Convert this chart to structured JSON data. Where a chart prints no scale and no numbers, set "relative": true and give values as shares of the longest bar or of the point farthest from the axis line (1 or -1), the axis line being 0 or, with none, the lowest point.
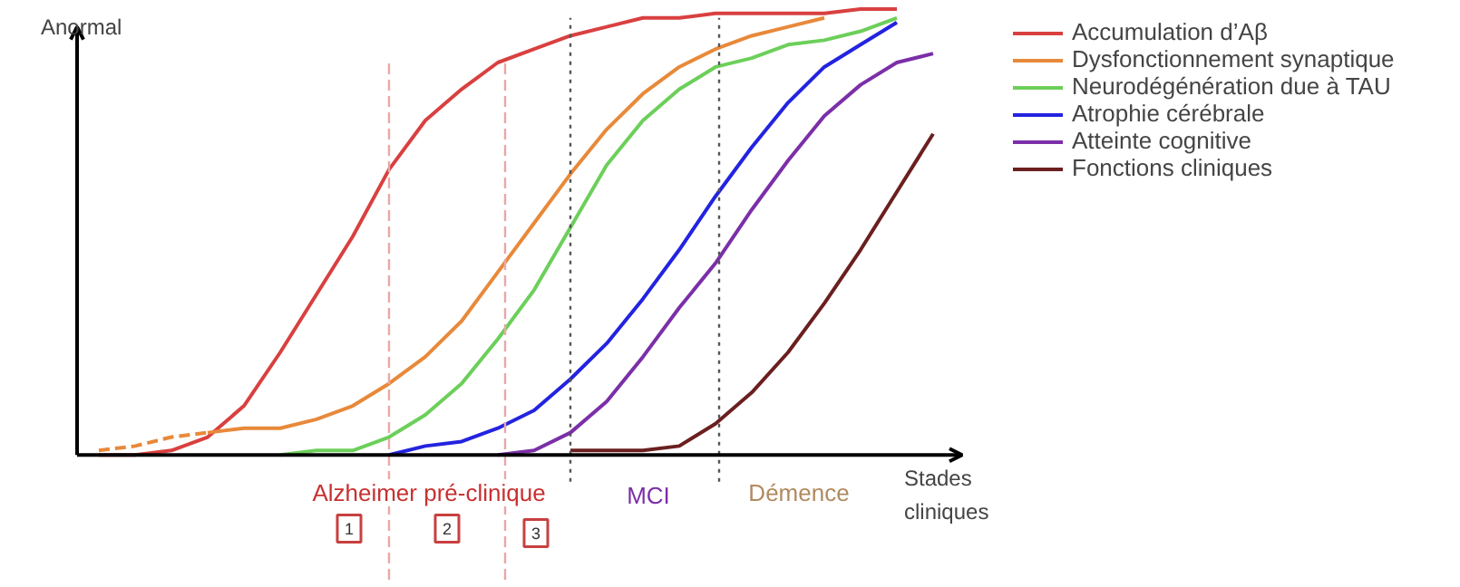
{
  "chart_data": {
    "type": "line",
    "relative": true,
    "ylabel": "Anormal",
    "xlabel": "Stades cliniques",
    "legend": "right",
    "grid": false,
    "line_style": "solid",
    "categories": [
      null,
      null,
      null,
      null,
      null,
      null,
      null,
      null,
      null,
      null,
      null,
      null,
      null,
      null,
      null,
      null,
      null,
      null,
      null,
      null,
      null,
      null,
      null,
      null
    ],
    "series": [
      {
        "name": "Accumulation d’Aβ",
        "color": "#d94040",
        "values": [
          0.0,
          0.0,
          0.01,
          0.04,
          0.11,
          0.23,
          0.36,
          0.49,
          0.64,
          0.75,
          0.82,
          0.88,
          0.91,
          0.94,
          0.96,
          0.98,
          0.98,
          0.99,
          0.99,
          0.99,
          0.99,
          1.0,
          1.0,
          null
        ]
      },
      {
        "name": "Dysfonctionnement synaptique",
        "color": "#e8893a",
        "values": [
          null,
          null,
          null,
          0.05,
          0.06,
          0.06,
          0.08,
          0.11,
          0.16,
          0.22,
          0.3,
          0.41,
          0.52,
          0.63,
          0.73,
          0.81,
          0.87,
          0.91,
          0.94,
          0.96,
          0.98,
          null,
          null,
          null
        ]
      },
      {
        "color": "#e8893a",
        "line_style": "dashed",
        "values": [
          0.01,
          0.02,
          0.04,
          0.05,
          null,
          null,
          null,
          null,
          null,
          null,
          null,
          null,
          null,
          null,
          null,
          null,
          null,
          null,
          null,
          null,
          null,
          null,
          null,
          null
        ]
      },
      {
        "name": "Neurodégénération due à TAU",
        "color": "#6ccf5a",
        "values": [
          null,
          null,
          null,
          null,
          null,
          0.0,
          0.01,
          0.01,
          0.04,
          0.09,
          0.16,
          0.26,
          0.37,
          0.51,
          0.65,
          0.75,
          0.82,
          0.87,
          0.89,
          0.92,
          0.93,
          0.95,
          0.98,
          null
        ]
      },
      {
        "name": "Atrophie cérébrale",
        "color": "#2323e0",
        "values": [
          null,
          null,
          null,
          null,
          null,
          null,
          null,
          null,
          0.0,
          0.02,
          0.03,
          0.06,
          0.1,
          0.17,
          0.25,
          0.35,
          0.46,
          0.58,
          0.69,
          0.79,
          0.87,
          0.92,
          0.97,
          null
        ]
      },
      {
        "name": "Atteinte cognitive",
        "color": "#7b2fa8",
        "values": [
          null,
          null,
          null,
          null,
          null,
          null,
          null,
          null,
          null,
          null,
          null,
          0.0,
          0.01,
          0.05,
          0.12,
          0.22,
          0.33,
          0.43,
          0.55,
          0.66,
          0.76,
          0.83,
          0.88,
          0.9
        ]
      },
      {
        "name": "Fonctions cliniques",
        "color": "#6b1f1f",
        "values": [
          null,
          null,
          null,
          null,
          null,
          null,
          null,
          null,
          null,
          null,
          null,
          null,
          null,
          0.01,
          0.01,
          0.01,
          0.02,
          0.07,
          0.14,
          0.23,
          0.34,
          0.46,
          0.59,
          0.72
        ]
      }
    ],
    "annotations": [
      "Alzheimer pré-clinique",
      "MCI",
      "Démence",
      "1",
      "2",
      "3"
    ]
  }
}
